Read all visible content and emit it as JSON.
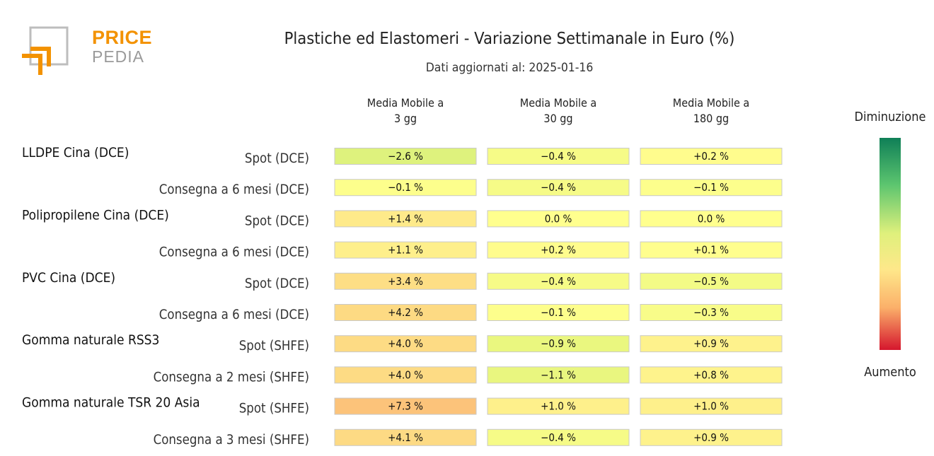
{
  "logo": {
    "word1": "PRICE",
    "word2": "PEDIA"
  },
  "title": "Plastiche ed Elastomeri - Variazione Settimanale in Euro (%)",
  "subtitle": "Dati aggiornati al: 2025-01-16",
  "colorbar": {
    "top_label": "Diminuzione",
    "bottom_label": "Aumento",
    "colors": [
      "#0f7f57",
      "#5cc56f",
      "#dff07c",
      "#fee88a",
      "#fbb06a",
      "#d5162e"
    ]
  },
  "chart_data": {
    "type": "heatmap",
    "title": "Plastiche ed Elastomeri - Variazione Settimanale in Euro (%)",
    "columns": [
      {
        "line1": "Media Mobile a",
        "line2": "3 gg"
      },
      {
        "line1": "Media Mobile a",
        "line2": "30 gg"
      },
      {
        "line1": "Media Mobile a",
        "line2": "180 gg"
      }
    ],
    "groups": [
      {
        "name": "LLDPE Cina (DCE)",
        "rows": [
          {
            "label": "Spot (DCE)",
            "values": [
              -2.6,
              -0.4,
              0.2
            ],
            "texts": [
              "−2.6 %",
              "−0.4 %",
              "+0.2 %"
            ]
          },
          {
            "label": "Consegna a 6 mesi (DCE)",
            "values": [
              -0.1,
              -0.4,
              -0.1
            ],
            "texts": [
              "−0.1 %",
              "−0.4 %",
              "−0.1 %"
            ]
          }
        ]
      },
      {
        "name": "Polipropilene Cina (DCE)",
        "rows": [
          {
            "label": "Spot (DCE)",
            "values": [
              1.4,
              0.0,
              0.0
            ],
            "texts": [
              "+1.4 %",
              "0.0 %",
              "0.0 %"
            ]
          },
          {
            "label": "Consegna a 6 mesi (DCE)",
            "values": [
              1.1,
              0.2,
              0.1
            ],
            "texts": [
              "+1.1 %",
              "+0.2 %",
              "+0.1 %"
            ]
          }
        ]
      },
      {
        "name": "PVC Cina (DCE)",
        "rows": [
          {
            "label": "Spot (DCE)",
            "values": [
              3.4,
              -0.4,
              -0.5
            ],
            "texts": [
              "+3.4 %",
              "−0.4 %",
              "−0.5 %"
            ]
          },
          {
            "label": "Consegna a 6 mesi (DCE)",
            "values": [
              4.2,
              -0.1,
              -0.3
            ],
            "texts": [
              "+4.2 %",
              "−0.1 %",
              "−0.3 %"
            ]
          }
        ]
      },
      {
        "name": "Gomma naturale RSS3",
        "rows": [
          {
            "label": "Spot (SHFE)",
            "values": [
              4.0,
              -0.9,
              0.9
            ],
            "texts": [
              "+4.0 %",
              "−0.9 %",
              "+0.9 %"
            ]
          },
          {
            "label": "Consegna a 2 mesi (SHFE)",
            "values": [
              4.0,
              -1.1,
              0.8
            ],
            "texts": [
              "+4.0 %",
              "−1.1 %",
              "+0.8 %"
            ]
          }
        ]
      },
      {
        "name": "Gomma naturale TSR 20 Asia",
        "rows": [
          {
            "label": "Spot (SHFE)",
            "values": [
              7.3,
              1.0,
              1.0
            ],
            "texts": [
              "+7.3 %",
              "+1.0 %",
              "+1.0 %"
            ]
          },
          {
            "label": "Consegna a 3 mesi (SHFE)",
            "values": [
              4.1,
              -0.4,
              0.9
            ],
            "texts": [
              "+4.1 %",
              "−0.4 %",
              "+0.9 %"
            ]
          }
        ]
      }
    ]
  }
}
